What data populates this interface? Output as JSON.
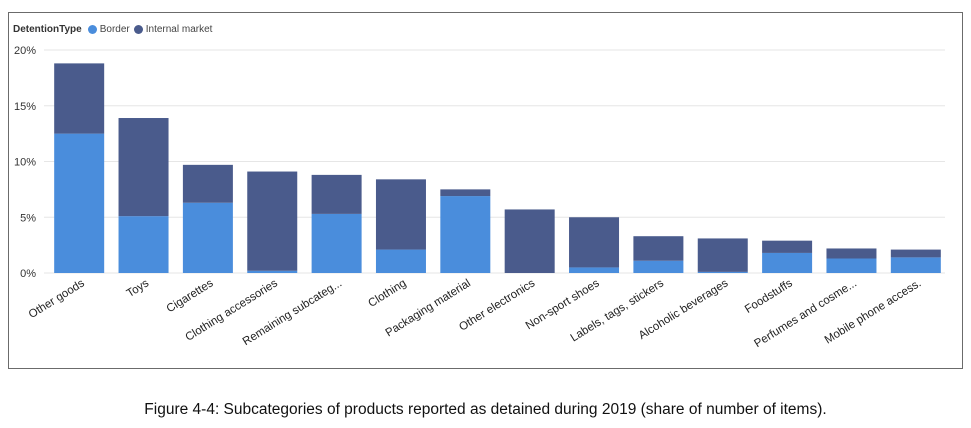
{
  "caption": "Figure 4-4: Subcategories of products reported as detained during 2019 (share of number of items).",
  "legend": {
    "title": "DetentionType",
    "entries": [
      {
        "name": "Border",
        "color": "#4a8ddc"
      },
      {
        "name": "Internal market",
        "color": "#4a5b8c"
      }
    ]
  },
  "chart_data": {
    "type": "bar",
    "stacked": true,
    "categories": [
      "Other goods",
      "Toys",
      "Cigarettes",
      "Clothing accessories",
      "Remaining subcateg...",
      "Clothing",
      "Packaging material",
      "Other electronics",
      "Non-sport shoes",
      "Labels, tags, stickers",
      "Alcoholic beverages",
      "Foodstuffs",
      "Perfumes and cosme...",
      "Mobile phone access."
    ],
    "series": [
      {
        "name": "Border",
        "color": "#4a8ddc",
        "values": [
          12.5,
          5.1,
          6.3,
          0.2,
          5.3,
          2.1,
          6.9,
          0.0,
          0.5,
          1.1,
          0.1,
          1.8,
          1.3,
          1.4
        ]
      },
      {
        "name": "Internal market",
        "color": "#4a5b8c",
        "values": [
          6.3,
          8.8,
          3.4,
          8.9,
          3.5,
          6.3,
          0.6,
          5.7,
          4.5,
          2.2,
          3.0,
          1.1,
          0.9,
          0.7
        ]
      }
    ],
    "yticks": [
      "0%",
      "5%",
      "10%",
      "15%",
      "20%"
    ],
    "ylim": [
      0,
      20
    ],
    "grid": true,
    "legend_position": "top-left"
  }
}
